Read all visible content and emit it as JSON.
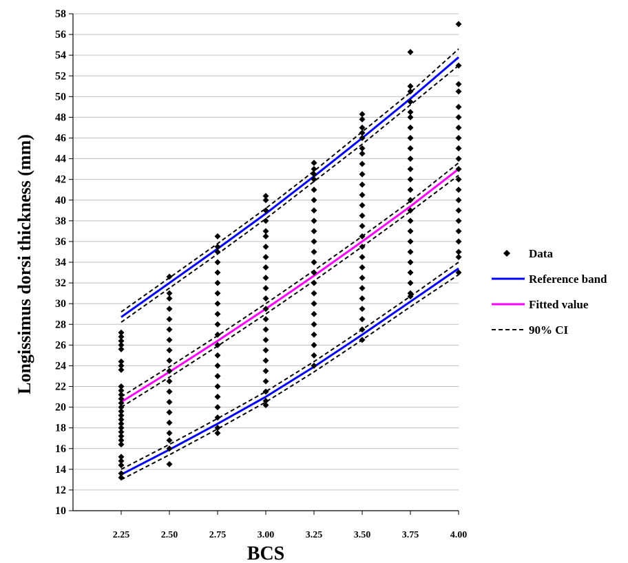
{
  "chart_data": {
    "type": "scatter",
    "xlabel": "BCS",
    "ylabel": "Longissimus dorsi thickness (mm)",
    "x_ticks": [
      "2.25",
      "2.50",
      "2.75",
      "3.00",
      "3.25",
      "3.50",
      "3.75",
      "4.00"
    ],
    "y_ticks": [
      "10",
      "12",
      "14",
      "16",
      "18",
      "20",
      "22",
      "24",
      "26",
      "28",
      "30",
      "32",
      "34",
      "36",
      "38",
      "40",
      "42",
      "44",
      "46",
      "48",
      "50",
      "52",
      "54",
      "56",
      "58"
    ],
    "xlim": [
      2.0,
      4.0
    ],
    "ylim": [
      10,
      58
    ],
    "grid": true,
    "legend_position": "right",
    "data_columns": [
      {
        "x": 2.25,
        "y": [
          13.2,
          13.6,
          14.4,
          14.8,
          15.2,
          16.4,
          16.8,
          17.2,
          17.6,
          18.0,
          18.4,
          18.8,
          19.2,
          19.6,
          20.0,
          20.4,
          20.8,
          21.2,
          21.6,
          22.0,
          23.6,
          24.0,
          24.4,
          25.6,
          26.0,
          26.4,
          26.8,
          27.2
        ]
      },
      {
        "x": 2.5,
        "y": [
          14.5,
          16.0,
          16.8,
          17.5,
          18.5,
          19.5,
          20.5,
          21.5,
          22.5,
          23.5,
          24.5,
          25.5,
          26.5,
          27.5,
          28.5,
          29.5,
          30.5,
          31.0,
          32.6
        ]
      },
      {
        "x": 2.75,
        "y": [
          17.5,
          18.0,
          19.0,
          20.0,
          21.0,
          22.0,
          23.0,
          24.0,
          25.0,
          26.0,
          27.0,
          28.0,
          29.0,
          30.0,
          31.0,
          32.0,
          33.0,
          34.0,
          35.0,
          35.5,
          36.5
        ]
      },
      {
        "x": 3.0,
        "y": [
          20.2,
          20.6,
          21.5,
          22.5,
          23.5,
          24.5,
          25.5,
          26.5,
          27.5,
          28.5,
          29.5,
          30.5,
          31.5,
          32.5,
          33.5,
          34.5,
          35.5,
          36.5,
          37.0,
          38.0,
          39.0,
          40.0,
          40.4
        ]
      },
      {
        "x": 3.25,
        "y": [
          24.0,
          25.0,
          26.0,
          27.0,
          28.0,
          29.0,
          30.0,
          31.0,
          32.0,
          33.0,
          34.0,
          35.0,
          36.0,
          37.0,
          38.0,
          39.0,
          40.0,
          41.0,
          42.0,
          42.5,
          43.0,
          43.6
        ]
      },
      {
        "x": 3.5,
        "y": [
          26.5,
          27.5,
          28.5,
          29.5,
          30.5,
          31.5,
          32.5,
          33.5,
          34.5,
          35.5,
          36.5,
          37.5,
          38.5,
          39.5,
          40.5,
          41.5,
          42.5,
          43.5,
          44.5,
          45.0,
          46.0,
          46.5,
          47.0,
          47.8,
          48.3
        ]
      },
      {
        "x": 3.75,
        "y": [
          30.7,
          31.0,
          32.0,
          33.0,
          34.0,
          35.0,
          36.0,
          37.0,
          38.0,
          39.0,
          40.0,
          41.0,
          42.0,
          43.0,
          44.0,
          45.0,
          46.0,
          47.0,
          48.0,
          48.5,
          49.5,
          50.5,
          51.0,
          54.3
        ]
      },
      {
        "x": 4.0,
        "y": [
          33.0,
          34.5,
          35.0,
          36.0,
          37.0,
          38.0,
          39.0,
          40.0,
          41.0,
          42.0,
          43.0,
          44.0,
          45.0,
          46.0,
          47.0,
          48.0,
          49.0,
          50.5,
          51.2,
          53.0,
          57.0
        ]
      }
    ],
    "series": [
      {
        "name": "Data",
        "kind": "marker",
        "color": "#000000"
      },
      {
        "name": "Reference band",
        "kind": "line",
        "color": "#0000ff",
        "lines": [
          {
            "x": [
              2.25,
              2.5,
              2.75,
              3.0,
              3.25,
              3.5,
              3.75,
              4.0
            ],
            "y": [
              28.7,
              32.0,
              35.3,
              38.7,
              42.3,
              46.0,
              49.8,
              53.8
            ]
          },
          {
            "x": [
              2.25,
              2.5,
              2.75,
              3.0,
              3.25,
              3.5,
              3.75,
              4.0
            ],
            "y": [
              13.5,
              15.9,
              18.4,
              21.0,
              23.9,
              27.0,
              30.2,
              33.4
            ]
          }
        ]
      },
      {
        "name": "Fitted value",
        "kind": "line",
        "color": "#ff00ff",
        "lines": [
          {
            "x": [
              2.25,
              2.5,
              2.75,
              3.0,
              3.25,
              3.5,
              3.75,
              4.0
            ],
            "y": [
              20.5,
              23.4,
              26.4,
              29.5,
              32.7,
              36.0,
              39.4,
              43.0
            ]
          }
        ]
      },
      {
        "name": "90% CI",
        "kind": "dashed",
        "color": "#000000",
        "lines": [
          {
            "x": [
              2.25,
              2.5,
              2.75,
              3.0,
              3.25,
              3.5,
              3.75,
              4.0
            ],
            "y": [
              29.2,
              32.5,
              35.8,
              39.2,
              42.8,
              46.6,
              50.4,
              54.6
            ]
          },
          {
            "x": [
              2.25,
              2.5,
              2.75,
              3.0,
              3.25,
              3.5,
              3.75,
              4.0
            ],
            "y": [
              28.2,
              31.5,
              34.8,
              38.2,
              41.8,
              45.4,
              49.2,
              53.0
            ]
          },
          {
            "x": [
              2.25,
              2.5,
              2.75,
              3.0,
              3.25,
              3.5,
              3.75,
              4.0
            ],
            "y": [
              21.0,
              23.9,
              26.9,
              30.0,
              33.2,
              36.5,
              39.9,
              43.6
            ]
          },
          {
            "x": [
              2.25,
              2.5,
              2.75,
              3.0,
              3.25,
              3.5,
              3.75,
              4.0
            ],
            "y": [
              20.0,
              22.9,
              25.9,
              29.0,
              32.2,
              35.5,
              38.9,
              42.4
            ]
          },
          {
            "x": [
              2.25,
              2.5,
              2.75,
              3.0,
              3.25,
              3.5,
              3.75,
              4.0
            ],
            "y": [
              14.0,
              16.4,
              18.9,
              21.5,
              24.4,
              27.5,
              30.7,
              34.0
            ]
          },
          {
            "x": [
              2.25,
              2.5,
              2.75,
              3.0,
              3.25,
              3.5,
              3.75,
              4.0
            ],
            "y": [
              13.0,
              15.4,
              17.9,
              20.5,
              23.4,
              26.5,
              29.7,
              32.8
            ]
          }
        ]
      }
    ]
  }
}
